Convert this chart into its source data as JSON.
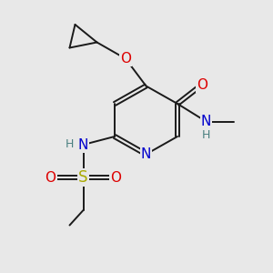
{
  "bg_color": "#e8e8e8",
  "bond_color": "#1a1a1a",
  "atom_colors": {
    "O": "#dd0000",
    "N": "#0000cc",
    "S": "#aaaa00",
    "H": "#4a8080",
    "C": "#1a1a1a"
  },
  "font_size_atom": 10,
  "line_width": 1.4
}
